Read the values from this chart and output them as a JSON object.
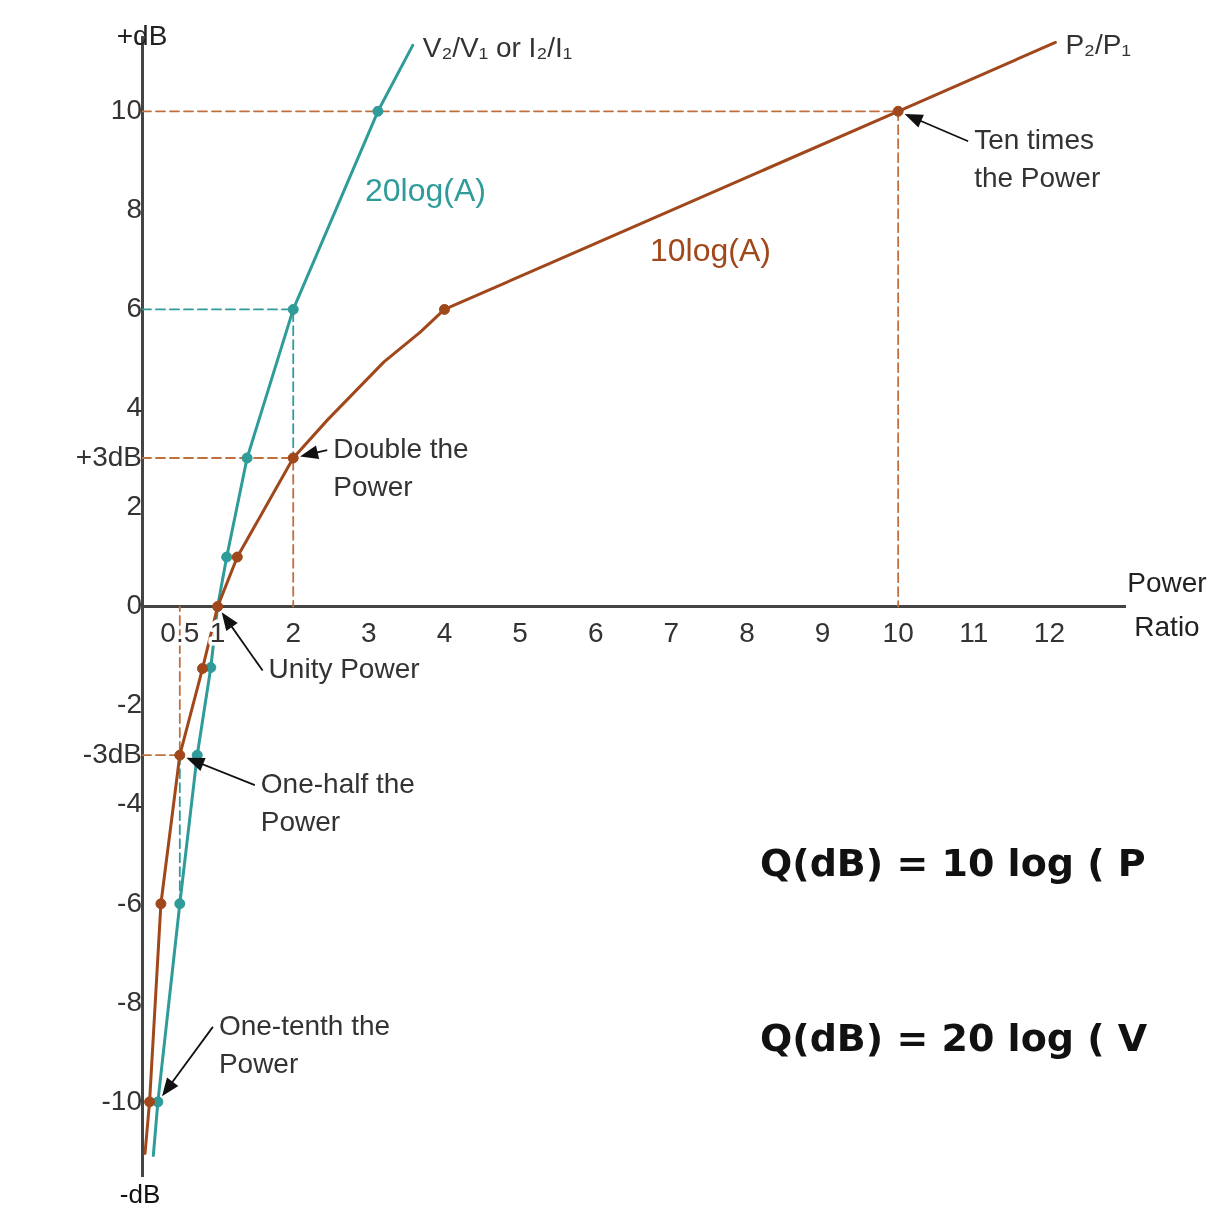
{
  "chart_data": {
    "type": "line",
    "ylabel": "+dB",
    "xlabel": "Power Ratio",
    "xlim": [
      0,
      13
    ],
    "ylim": [
      -11.5,
      11.5
    ],
    "xticks": [
      0.5,
      1,
      2,
      3,
      4,
      5,
      6,
      7,
      8,
      9,
      10,
      11,
      12
    ],
    "yticks": [
      -10,
      -8,
      -6,
      -4,
      {
        "value": -3,
        "label": "-3dB"
      },
      -2,
      0,
      2,
      {
        "value": 3,
        "label": "+3dB"
      },
      4,
      6,
      8,
      10
    ],
    "grid": false,
    "legend": false,
    "series": [
      {
        "name": "P₂/P₁",
        "type": "line",
        "marker": "none",
        "color": "#a0481c",
        "x": [
          0.04,
          0.1,
          0.25,
          0.5,
          0.8,
          1,
          1.26,
          2,
          2.46,
          3.2,
          3.68,
          4,
          10,
          12.08
        ],
        "values": [
          -11.04,
          -10,
          -6,
          -3,
          -1.25,
          0,
          1,
          3,
          3.78,
          4.94,
          5.54,
          6,
          10,
          11.39
        ]
      },
      {
        "type": "scatter",
        "marker": "circle",
        "color": "#a0481c",
        "x": [
          0.1,
          0.25,
          0.5,
          0.8,
          1,
          1.26,
          2,
          4,
          10
        ],
        "values": [
          -10,
          -6,
          -3,
          -1.25,
          0,
          1,
          3,
          6,
          10
        ]
      },
      {
        "name": "V₂/V₁ or I₂/I₁",
        "type": "line",
        "marker": "none",
        "color": "#2f9c9a",
        "x": [
          0.15,
          0.21,
          0.5,
          0.73,
          0.91,
          1,
          1.12,
          1.39,
          2,
          3.12,
          3.58
        ],
        "values": [
          -11.08,
          -10,
          -6,
          -3,
          -1.23,
          0,
          1,
          3,
          6,
          10,
          11.33
        ]
      },
      {
        "type": "scatter",
        "marker": "circle",
        "color": "#2f9c9a",
        "x": [
          0.21,
          0.5,
          0.73,
          0.91,
          1.12,
          1.39,
          2,
          3.12
        ],
        "values": [
          -10,
          -6,
          -3,
          -1.23,
          1,
          3,
          6,
          10
        ]
      },
      {
        "type": "line",
        "marker": "none",
        "line_style": "dashed",
        "color": "#c0703f",
        "x": [
          0,
          10,
          10
        ],
        "values": [
          10,
          10,
          0
        ]
      },
      {
        "type": "line",
        "marker": "none",
        "line_style": "dashed",
        "color": "#c0703f",
        "x": [
          0,
          2,
          2
        ],
        "values": [
          3,
          3,
          0
        ]
      },
      {
        "type": "line",
        "marker": "none",
        "line_style": "dashed",
        "color": "#c0703f",
        "x": [
          0,
          0.5,
          0.5
        ],
        "values": [
          -3,
          -3,
          0
        ]
      },
      {
        "type": "line",
        "marker": "none",
        "line_style": "dashed",
        "color": "#2f9c9a",
        "x": [
          0,
          2,
          2
        ],
        "values": [
          6,
          6,
          3
        ]
      },
      {
        "type": "line",
        "marker": "none",
        "line_style": "dashed",
        "color": "#2f9c9a",
        "x": [
          0.5,
          0.5
        ],
        "values": [
          -3,
          -6
        ]
      }
    ],
    "annotations": [
      {
        "text": "Ten times the Power",
        "x": 10,
        "y": 10
      },
      {
        "text": "Double the Power",
        "x": 2,
        "y": 3
      },
      {
        "text": "Unity Power",
        "x": 1,
        "y": 0
      },
      {
        "text": "One-half the Power",
        "x": 0.5,
        "y": -3
      },
      {
        "text": "One-tenth the Power",
        "x": 0.21,
        "y": -10
      },
      "20log(A)",
      "10log(A)",
      "-dB",
      "Q(dB) = 10 log ( P",
      "Q(dB) = 20 log ( V"
    ]
  }
}
